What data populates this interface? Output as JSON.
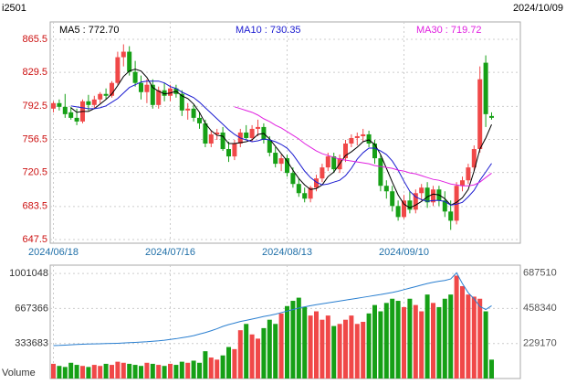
{
  "chart_data": [
    {
      "type": "candlestick",
      "title": "i2501",
      "date": "2024/10/09",
      "categories": [
        "2024/06/18",
        null,
        null,
        null,
        null,
        null,
        null,
        null,
        null,
        null,
        null,
        null,
        null,
        null,
        null,
        null,
        null,
        null,
        null,
        null,
        "2024/07/16",
        null,
        null,
        null,
        null,
        null,
        null,
        null,
        null,
        null,
        null,
        null,
        null,
        null,
        null,
        null,
        null,
        null,
        null,
        null,
        "2024/08/13",
        null,
        null,
        null,
        null,
        null,
        null,
        null,
        null,
        null,
        null,
        null,
        null,
        null,
        null,
        null,
        null,
        null,
        null,
        null,
        "2024/09/10",
        null,
        null,
        null,
        null,
        null,
        null,
        null,
        null,
        null,
        null,
        null,
        null,
        null,
        null,
        null
      ],
      "open": [
        790,
        796,
        792,
        786,
        780,
        776,
        798,
        794,
        800,
        806,
        804,
        818,
        846,
        852,
        830,
        818,
        808,
        816,
        794,
        810,
        804,
        812,
        806,
        788,
        790,
        780,
        774,
        752,
        762,
        764,
        746,
        738,
        752,
        764,
        758,
        768,
        770,
        756,
        742,
        730,
        736,
        720,
        708,
        698,
        692,
        704,
        714,
        726,
        738,
        724,
        736,
        752,
        758,
        760,
        762,
        752,
        736,
        706,
        700,
        684,
        672,
        690,
        680,
        698,
        704,
        688,
        702,
        690,
        678,
        668,
        706,
        712,
        726,
        746,
        840,
        782
      ],
      "high": [
        798,
        800,
        806,
        792,
        790,
        800,
        805,
        804,
        808,
        812,
        820,
        852,
        860,
        858,
        842,
        826,
        822,
        822,
        814,
        818,
        816,
        816,
        810,
        796,
        794,
        786,
        778,
        766,
        768,
        770,
        754,
        756,
        768,
        772,
        772,
        778,
        774,
        760,
        748,
        740,
        740,
        726,
        714,
        704,
        706,
        718,
        730,
        742,
        742,
        740,
        756,
        762,
        764,
        768,
        766,
        756,
        740,
        712,
        706,
        690,
        696,
        700,
        702,
        708,
        710,
        706,
        706,
        700,
        690,
        710,
        716,
        730,
        750,
        836,
        848,
        786
      ],
      "low": [
        786,
        788,
        780,
        778,
        772,
        774,
        788,
        790,
        796,
        800,
        802,
        816,
        836,
        826,
        814,
        800,
        796,
        790,
        790,
        798,
        798,
        802,
        782,
        778,
        776,
        768,
        748,
        748,
        756,
        744,
        732,
        734,
        748,
        756,
        754,
        760,
        752,
        738,
        726,
        722,
        716,
        704,
        694,
        688,
        688,
        700,
        710,
        722,
        720,
        720,
        732,
        748,
        750,
        754,
        748,
        730,
        700,
        692,
        678,
        668,
        670,
        676,
        676,
        690,
        682,
        684,
        684,
        672,
        658,
        664,
        700,
        708,
        722,
        742,
        770,
        778
      ],
      "close": [
        796,
        792,
        784,
        780,
        776,
        798,
        794,
        800,
        806,
        804,
        818,
        846,
        852,
        830,
        818,
        808,
        816,
        794,
        810,
        804,
        812,
        806,
        788,
        790,
        780,
        774,
        752,
        762,
        764,
        746,
        738,
        752,
        764,
        758,
        768,
        770,
        756,
        742,
        730,
        736,
        720,
        708,
        698,
        692,
        704,
        714,
        726,
        738,
        724,
        736,
        752,
        758,
        760,
        762,
        752,
        736,
        706,
        700,
        684,
        672,
        690,
        680,
        698,
        704,
        688,
        702,
        690,
        678,
        668,
        706,
        712,
        726,
        746,
        822,
        784,
        780
      ],
      "up_color": "#f04848",
      "down_color": "#16a016",
      "ylim": [
        643.5,
        884.4
      ],
      "yticks": [
        647.5,
        683.5,
        720.5,
        756.5,
        792.5,
        829.5,
        865.5
      ],
      "grid": true,
      "series": [
        {
          "name": "MA5 : 772.70",
          "color": "#000000",
          "values": [
            null,
            null,
            null,
            791,
            786,
            787,
            787,
            790,
            795,
            800,
            806,
            815,
            825,
            831,
            833,
            831,
            824,
            813,
            809,
            806,
            807,
            809,
            804,
            801,
            795,
            786,
            774,
            766,
            761,
            760,
            752,
            752,
            753,
            754,
            756,
            762,
            763,
            757,
            749,
            741,
            733,
            723,
            714,
            707,
            702,
            703,
            707,
            716,
            721,
            730,
            739,
            743,
            748,
            754,
            756,
            751,
            740,
            725,
            710,
            696,
            686,
            682,
            685,
            689,
            694,
            697,
            696,
            692,
            685,
            688,
            693,
            702,
            722,
            746,
            758,
            772.7
          ]
        },
        {
          "name": "MA10 : 730.35",
          "color": "#1a1ad0",
          "values": [
            null,
            null,
            null,
            793,
            792,
            791,
            790,
            790,
            791,
            793,
            797,
            801,
            807,
            813,
            816,
            819,
            820,
            820,
            820,
            818,
            814,
            812,
            808,
            805,
            802,
            797,
            791,
            785,
            779,
            773,
            767,
            762,
            758,
            756,
            754,
            755,
            757,
            756,
            754,
            751,
            747,
            740,
            731,
            722,
            715,
            710,
            707,
            708,
            710,
            712,
            717,
            725,
            735,
            742,
            747,
            747,
            744,
            740,
            733,
            723,
            711,
            700,
            694,
            691,
            689,
            690,
            690,
            689,
            685,
            686,
            688,
            694,
            701,
            712,
            721,
            730.35
          ]
        },
        {
          "name": "MA30 : 719.72",
          "color": "#e020e0",
          "values": [
            null,
            null,
            null,
            null,
            null,
            null,
            null,
            null,
            null,
            null,
            null,
            null,
            null,
            null,
            null,
            null,
            null,
            null,
            null,
            null,
            null,
            null,
            null,
            null,
            null,
            null,
            null,
            null,
            null,
            null,
            null,
            792,
            790,
            788,
            786,
            783,
            779,
            776,
            772,
            769,
            765,
            761,
            757,
            752,
            748,
            744,
            741,
            739,
            737,
            735,
            734,
            733,
            732,
            731,
            730,
            728,
            727,
            726,
            725,
            723,
            722,
            720,
            719,
            717,
            715,
            713,
            712,
            710,
            708,
            707,
            706,
            706,
            707,
            710,
            715,
            719.72
          ]
        }
      ]
    },
    {
      "type": "bar",
      "y_label": "Volume",
      "values": [
        140000,
        120000,
        110000,
        150000,
        130000,
        120000,
        110000,
        130000,
        120000,
        140000,
        130000,
        160000,
        150000,
        140000,
        130000,
        120000,
        150000,
        140000,
        130000,
        120000,
        140000,
        130000,
        160000,
        150000,
        170000,
        150000,
        260000,
        200000,
        180000,
        220000,
        300000,
        280000,
        460000,
        520000,
        420000,
        380000,
        480000,
        560000,
        520000,
        620000,
        690000,
        740000,
        770000,
        680000,
        600000,
        640000,
        560000,
        600000,
        500000,
        520000,
        560000,
        600000,
        520000,
        540000,
        620000,
        700000,
        640000,
        720000,
        760000,
        740000,
        680000,
        760000,
        700000,
        640000,
        800000,
        720000,
        680000,
        760000,
        800000,
        980000,
        880000,
        800000,
        780000,
        760000,
        640000,
        180000
      ],
      "ylim": [
        0,
        1080000
      ],
      "yticks": [
        333683,
        667366,
        1001048
      ],
      "y2lim": [
        0,
        740000
      ],
      "y2ticks": [
        229170,
        458340,
        687510
      ],
      "series": [
        {
          "color": "#2a7fd0",
          "axis": "y2",
          "values": [
            215000,
            216000,
            218000,
            220000,
            222000,
            224000,
            225000,
            226000,
            227000,
            228000,
            229000,
            230000,
            232000,
            234000,
            236000,
            238000,
            240000,
            243000,
            246000,
            250000,
            255000,
            260000,
            266000,
            272000,
            280000,
            290000,
            300000,
            312000,
            325000,
            340000,
            352000,
            362000,
            372000,
            380000,
            388000,
            396000,
            405000,
            412000,
            420000,
            430000,
            440000,
            450000,
            460000,
            468000,
            475000,
            482000,
            488000,
            494000,
            500000,
            506000,
            512000,
            518000,
            524000,
            530000,
            536000,
            542000,
            548000,
            555000,
            562000,
            570000,
            580000,
            590000,
            600000,
            610000,
            620000,
            628000,
            635000,
            640000,
            650000,
            690000,
            620000,
            560000,
            520000,
            470000,
            450000,
            475000
          ]
        }
      ]
    }
  ]
}
